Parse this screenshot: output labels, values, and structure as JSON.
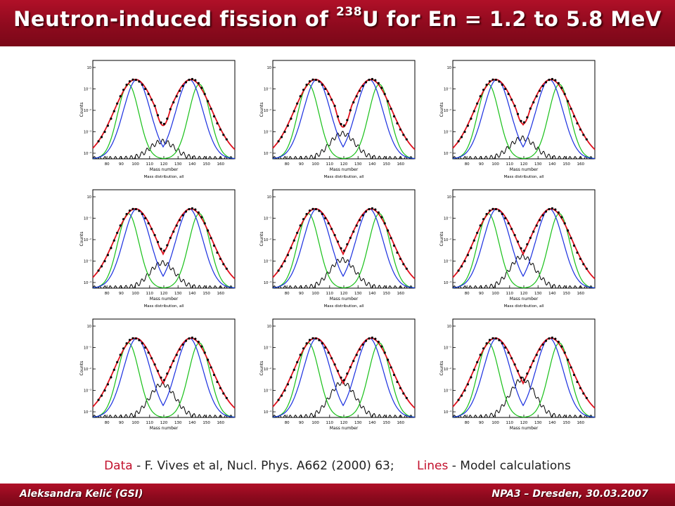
{
  "header": {
    "title_pre": "Neutron-induced fission of ",
    "title_sup": "238",
    "title_post": "U for En = 1.2 to 5.8 MeV"
  },
  "caption": {
    "data_word": "Data",
    "data_text": " - F. Vives et al, Nucl. Phys. A662 (2000) 63;",
    "lines_word": "Lines",
    "lines_text": " - Model calculations"
  },
  "footer": {
    "author": "Aleksandra Kelić (GSI)",
    "event": "NPA3 – Dresden, 30.03.2007"
  },
  "colors": {
    "bar": "#9a0c22",
    "data_points": "#000000",
    "total": "#e0101c",
    "standard_1": "#1a2fe0",
    "standard_2": "#18c018",
    "super_long": "#000000"
  },
  "chart_data": [
    {
      "type": "line",
      "panel": 1,
      "xlabel": "Mass number",
      "ylabel": "Counts",
      "subtitle": "Mass distribution, all",
      "xlim": [
        70,
        170
      ],
      "xticks": [
        "80",
        "90",
        "100",
        "110",
        "120",
        "130",
        "140",
        "150",
        "160"
      ],
      "yticks": [
        "10",
        "10⁻¹",
        "10⁻²",
        "10⁻³",
        "10⁻⁴"
      ],
      "peak_height": 5.0,
      "valley_depth": 2.1,
      "sl_height": 1.1
    },
    {
      "type": "line",
      "panel": 2,
      "xlabel": "Mass number",
      "ylabel": "Counts",
      "subtitle": "Mass distribution, all",
      "xlim": [
        70,
        170
      ],
      "xticks": [
        "80",
        "90",
        "100",
        "110",
        "120",
        "130",
        "140",
        "150",
        "160"
      ],
      "yticks": [
        "10",
        "10⁻¹",
        "10⁻²",
        "10⁻³",
        "10⁻⁴"
      ],
      "peak_height": 5.0,
      "valley_depth": 2.0,
      "sl_height": 1.6
    },
    {
      "type": "line",
      "panel": 3,
      "xlabel": "Mass number",
      "ylabel": "Counts",
      "subtitle": "Mass distribution, all",
      "xlim": [
        70,
        170
      ],
      "xticks": [
        "80",
        "90",
        "100",
        "110",
        "120",
        "130",
        "140",
        "150",
        "160"
      ],
      "yticks": [
        "10",
        "10⁻¹",
        "10⁻²",
        "10⁻³",
        "10⁻⁴"
      ],
      "peak_height": 5.0,
      "valley_depth": 2.2,
      "sl_height": 1.3
    },
    {
      "type": "line",
      "panel": 4,
      "xlabel": "Mass number",
      "ylabel": "Counts",
      "subtitle": "Mass distribution, all",
      "xlim": [
        70,
        170
      ],
      "xticks": [
        "80",
        "90",
        "100",
        "110",
        "120",
        "130",
        "140",
        "150",
        "160"
      ],
      "yticks": [
        "10",
        "10⁻¹",
        "10⁻²",
        "10⁻³",
        "10⁻⁴"
      ],
      "peak_height": 5.0,
      "valley_depth": 2.3,
      "sl_height": 1.6
    },
    {
      "type": "line",
      "panel": 5,
      "xlabel": "Mass number",
      "ylabel": "Counts",
      "subtitle": "Mass distribution, all",
      "xlim": [
        70,
        170
      ],
      "xticks": [
        "80",
        "90",
        "100",
        "110",
        "120",
        "130",
        "140",
        "150",
        "160"
      ],
      "yticks": [
        "10",
        "10⁻¹",
        "10⁻²",
        "10⁻³",
        "10⁻⁴"
      ],
      "peak_height": 5.0,
      "valley_depth": 2.5,
      "sl_height": 1.8
    },
    {
      "type": "line",
      "panel": 6,
      "xlabel": "Mass number",
      "ylabel": "Counts",
      "subtitle": "Mass distribution, all",
      "xlim": [
        70,
        170
      ],
      "xticks": [
        "80",
        "90",
        "100",
        "110",
        "120",
        "130",
        "140",
        "150",
        "160"
      ],
      "yticks": [
        "10",
        "10⁻¹",
        "10⁻²",
        "10⁻³",
        "10⁻⁴"
      ],
      "peak_height": 5.0,
      "valley_depth": 2.7,
      "sl_height": 2.0
    },
    {
      "type": "line",
      "panel": 7,
      "xlabel": "Mass number",
      "ylabel": "Counts",
      "subtitle": "",
      "xlim": [
        70,
        170
      ],
      "xticks": [
        "80",
        "90",
        "100",
        "110",
        "120",
        "130",
        "140",
        "150",
        "160"
      ],
      "yticks": [
        "10",
        "10⁻¹",
        "10⁻²",
        "10⁻³",
        "10⁻⁴"
      ],
      "peak_height": 5.0,
      "valley_depth": 2.8,
      "sl_height": 2.1
    },
    {
      "type": "line",
      "panel": 8,
      "xlabel": "Mass number",
      "ylabel": "Counts",
      "subtitle": "",
      "xlim": [
        70,
        170
      ],
      "xticks": [
        "80",
        "90",
        "100",
        "110",
        "120",
        "130",
        "140",
        "150",
        "160"
      ],
      "yticks": [
        "10",
        "10⁻¹",
        "10⁻²",
        "10⁻³",
        "10⁻⁴"
      ],
      "peak_height": 5.0,
      "valley_depth": 2.9,
      "sl_height": 2.2
    },
    {
      "type": "line",
      "panel": 9,
      "xlabel": "Mass number",
      "ylabel": "Counts",
      "subtitle": "",
      "xlim": [
        70,
        170
      ],
      "xticks": [
        "80",
        "90",
        "100",
        "110",
        "120",
        "130",
        "140",
        "150",
        "160"
      ],
      "yticks": [
        "10",
        "10⁻¹",
        "10⁻²",
        "10⁻³",
        "10⁻⁴"
      ],
      "peak_height": 5.0,
      "valley_depth": 3.2,
      "sl_height": 2.4
    }
  ]
}
